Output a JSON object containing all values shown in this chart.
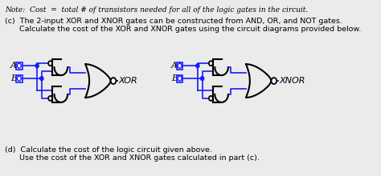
{
  "bg_color": "#ebebeb",
  "text_color": "#000000",
  "wire_color": "#1a1aff",
  "gate_color": "#000000",
  "note_line": "Note:  Cost  =  total # of transistors needed for all of the logic gates in the circuit.",
  "part_c_line1": "(c)  The 2-input XOR and XNOR gates can be constructed from AND, OR, and NOT gates.",
  "part_c_line2": "      Calculate the cost of the XOR and XNOR gates using the circuit diagrams provided below.",
  "part_d_line1": "(d)  Calculate the cost of the logic circuit given above.",
  "part_d_line2": "      Use the cost of the XOR and XNOR gates calculated in part (c).",
  "label_xor": "XOR",
  "label_xnor": "XNOR",
  "figsize": [
    4.74,
    2.2
  ],
  "dpi": 100
}
